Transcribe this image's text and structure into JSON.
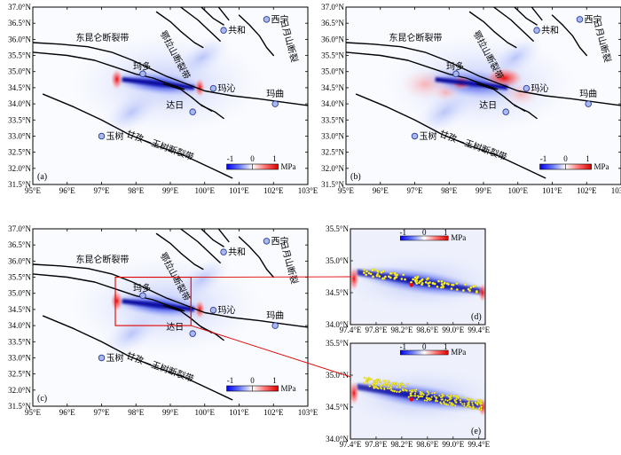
{
  "colorbar": {
    "ticks": [
      "-1",
      "0",
      "1"
    ],
    "unit": "MPa",
    "colors": {
      "neg": "#0000ff",
      "mid": "#ffffff",
      "pos": "#ff0000"
    }
  },
  "main_axes": {
    "lon_ticks": [
      "95°E",
      "96°E",
      "97°E",
      "98°E",
      "99°E",
      "100°E",
      "101°E",
      "102°E",
      "103°E"
    ],
    "lat_ticks": [
      "37.0°N",
      "36.5°N",
      "36.0°N",
      "35.5°N",
      "35.0°N",
      "34.5°N",
      "34.0°N",
      "33.5°N",
      "33.0°N",
      "32.5°N",
      "32.0°N",
      "31.5°N"
    ]
  },
  "inset_axes": {
    "lon_ticks": [
      "97.4°E",
      "97.8°E",
      "98.2°E",
      "98.6°E",
      "99.0°E",
      "99.4°E"
    ],
    "lat_ticks": [
      "35.5°N",
      "35.0°N",
      "34.5°N",
      "34.0°N"
    ]
  },
  "labels": {
    "fault_kunlun": "东昆仑断裂带",
    "fault_elashan": "鄂拉山断裂带",
    "fault_riyue": "日月山断裂",
    "fault_ganzi": "甘孜—玉树断裂带"
  },
  "cities": [
    {
      "id": "xining",
      "name": "西宁",
      "lon": 101.8,
      "lat": 36.62
    },
    {
      "id": "gonghe",
      "name": "共和",
      "lon": 100.55,
      "lat": 36.28
    },
    {
      "id": "maduo",
      "name": "玛多",
      "lon": 98.2,
      "lat": 34.93
    },
    {
      "id": "maqin",
      "name": "玛沁",
      "lon": 100.25,
      "lat": 34.48
    },
    {
      "id": "darl",
      "name": "达日",
      "lon": 99.65,
      "lat": 33.75
    },
    {
      "id": "maqu",
      "name": "玛曲",
      "lon": 102.05,
      "lat": 34.0
    },
    {
      "id": "yushu",
      "name": "玉树",
      "lon": 97.0,
      "lat": 33.0
    }
  ],
  "panels": [
    {
      "id": "a",
      "label": "(a)"
    },
    {
      "id": "b",
      "label": "(b)"
    },
    {
      "id": "c",
      "label": "(c)"
    },
    {
      "id": "d",
      "label": "(d)"
    },
    {
      "id": "e",
      "label": "(e)"
    }
  ]
}
